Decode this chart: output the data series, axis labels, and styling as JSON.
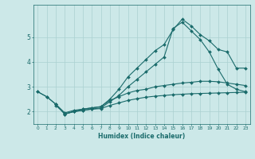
{
  "title": "",
  "xlabel": "Humidex (Indice chaleur)",
  "bg_color": "#cce8e8",
  "line_color": "#1a6b6b",
  "grid_color": "#aad0d0",
  "xlim": [
    -0.5,
    23.5
  ],
  "ylim": [
    1.5,
    6.3
  ],
  "yticks": [
    2,
    3,
    4,
    5
  ],
  "xticks": [
    0,
    1,
    2,
    3,
    4,
    5,
    6,
    7,
    8,
    9,
    10,
    11,
    12,
    13,
    14,
    15,
    16,
    17,
    18,
    19,
    20,
    21,
    22,
    23
  ],
  "series": [
    {
      "x": [
        0,
        1,
        2,
        3,
        4,
        5,
        6,
        7,
        8,
        9,
        10,
        11,
        12,
        13,
        14,
        15,
        16,
        17,
        18,
        19,
        20,
        21,
        22,
        23
      ],
      "y": [
        2.8,
        2.6,
        2.3,
        1.9,
        2.0,
        2.1,
        2.15,
        2.2,
        2.5,
        2.9,
        3.4,
        3.75,
        4.1,
        4.45,
        4.7,
        5.3,
        5.72,
        5.45,
        5.1,
        4.85,
        4.5,
        4.4,
        3.75,
        3.75
      ]
    },
    {
      "x": [
        0,
        1,
        2,
        3,
        4,
        5,
        6,
        7,
        8,
        9,
        10,
        11,
        12,
        13,
        14,
        15,
        16,
        17,
        18,
        19,
        20,
        21,
        22,
        23
      ],
      "y": [
        2.8,
        2.6,
        2.3,
        1.9,
        2.0,
        2.05,
        2.1,
        2.15,
        2.4,
        2.65,
        3.0,
        3.3,
        3.6,
        3.9,
        4.2,
        5.35,
        5.6,
        5.25,
        4.9,
        4.4,
        3.7,
        3.1,
        2.9,
        2.8
      ]
    },
    {
      "x": [
        2,
        3,
        4,
        5,
        6,
        7,
        8,
        9,
        10,
        11,
        12,
        13,
        14,
        15,
        16,
        17,
        18,
        19,
        20,
        21,
        22,
        23
      ],
      "y": [
        2.3,
        1.95,
        2.05,
        2.1,
        2.15,
        2.2,
        2.45,
        2.6,
        2.75,
        2.85,
        2.9,
        3.0,
        3.05,
        3.1,
        3.15,
        3.18,
        3.22,
        3.22,
        3.2,
        3.15,
        3.1,
        3.05
      ]
    },
    {
      "x": [
        2,
        3,
        4,
        5,
        6,
        7,
        8,
        9,
        10,
        11,
        12,
        13,
        14,
        15,
        16,
        17,
        18,
        19,
        20,
        21,
        22,
        23
      ],
      "y": [
        2.25,
        1.92,
        2.0,
        2.05,
        2.1,
        2.12,
        2.25,
        2.35,
        2.45,
        2.52,
        2.58,
        2.62,
        2.65,
        2.68,
        2.7,
        2.72,
        2.73,
        2.74,
        2.75,
        2.76,
        2.77,
        2.78
      ]
    }
  ]
}
